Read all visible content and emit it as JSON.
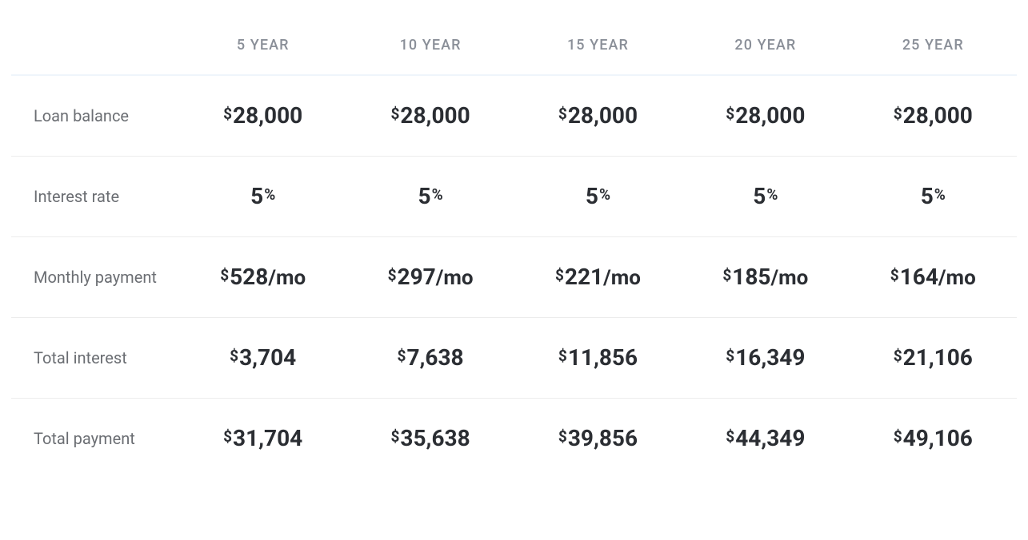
{
  "table": {
    "type": "table",
    "background_color": "#ffffff",
    "border_color": "#ececec",
    "header_underline_color": "#eff5fb",
    "header_font_color": "#8a8f98",
    "header_font_size_pt": 13,
    "header_letter_spacing_em": 0.06,
    "row_label_color": "#6b6e73",
    "row_label_font_size_pt": 15,
    "value_color": "#2b2e33",
    "value_font_size_pt": 21,
    "value_font_weight": 700,
    "superscript_font_size_pt": 14,
    "columns": [
      "5 YEAR",
      "10 YEAR",
      "15 YEAR",
      "20 YEAR",
      "25 YEAR"
    ],
    "row_labels": [
      "Loan balance",
      "Interest rate",
      "Monthly payment",
      "Total interest",
      "Total payment"
    ],
    "rows": [
      {
        "label": "Loan balance",
        "format": "currency",
        "currency_symbol": "$",
        "values": [
          "28,000",
          "28,000",
          "28,000",
          "28,000",
          "28,000"
        ]
      },
      {
        "label": "Interest rate",
        "format": "percent",
        "unit_symbol": "%",
        "values": [
          "5",
          "5",
          "5",
          "5",
          "5"
        ]
      },
      {
        "label": "Monthly payment",
        "format": "currency_suffix",
        "currency_symbol": "$",
        "suffix": "/mo",
        "values": [
          "528",
          "297",
          "221",
          "185",
          "164"
        ]
      },
      {
        "label": "Total interest",
        "format": "currency",
        "currency_symbol": "$",
        "values": [
          "3,704",
          "7,638",
          "11,856",
          "16,349",
          "21,106"
        ]
      },
      {
        "label": "Total payment",
        "format": "currency",
        "currency_symbol": "$",
        "values": [
          "31,704",
          "35,638",
          "39,856",
          "44,349",
          "49,106"
        ]
      }
    ]
  }
}
